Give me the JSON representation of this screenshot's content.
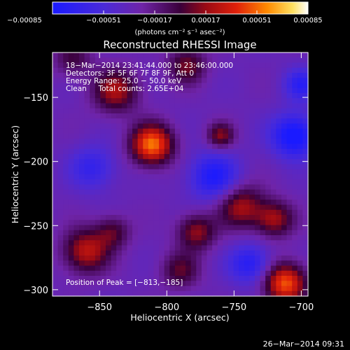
{
  "chart_data": {
    "type": "heatmap",
    "title": "Reconstructed RHESSI Image",
    "xlabel": "Heliocentric X (arcsec)",
    "ylabel": "Heliocentric Y (arcsec)",
    "xlim": [
      -885,
      -695
    ],
    "ylim": [
      -305,
      -115
    ],
    "x_ticks": [
      {
        "value": -850,
        "label": "−850"
      },
      {
        "value": -800,
        "label": "−800"
      },
      {
        "value": -750,
        "label": "−750"
      },
      {
        "value": -700,
        "label": "−700"
      }
    ],
    "y_ticks": [
      {
        "value": -150,
        "label": "−150"
      },
      {
        "value": -200,
        "label": "−200"
      },
      {
        "value": -250,
        "label": "−250"
      },
      {
        "value": -300,
        "label": "−300"
      }
    ],
    "colorbar": {
      "colormap": "blue-purple-red-yellow-white",
      "range": [
        -0.00085,
        0.00085
      ],
      "tick_values": [
        -0.00085,
        -0.00051,
        -0.00017,
        0.00017,
        0.00051,
        0.00085
      ],
      "tick_labels": [
        "−0.00085",
        "−0.00051",
        "−0.00017",
        "0.00017",
        "0.00051",
        "0.00085"
      ],
      "unit_label": "(photons cm⁻² s⁻¹ asec⁻²)"
    },
    "info_lines": [
      "18−Mar−2014 23:41:44.000 to 23:46:00.000",
      "Detectors: 3F 5F 6F 7F 8F 9F, Att 0",
      "Energy Range: 25.0 − 50.0 keV",
      "Clean     Total counts: 2.65E+04"
    ],
    "peak_text": "Position of Peak = [−813,−185]",
    "sources": [
      {
        "x": -811,
        "y": -187,
        "sigma": 11,
        "amp": 0.00085
      },
      {
        "x": -838,
        "y": -145,
        "sigma": 12,
        "amp": 0.00052
      },
      {
        "x": -860,
        "y": -270,
        "sigma": 12,
        "amp": 0.00058
      },
      {
        "x": -840,
        "y": -255,
        "sigma": 9,
        "amp": 0.00035
      },
      {
        "x": -790,
        "y": -285,
        "sigma": 10,
        "amp": 0.00036
      },
      {
        "x": -778,
        "y": -255,
        "sigma": 10,
        "amp": 0.00048
      },
      {
        "x": -760,
        "y": -180,
        "sigma": 7,
        "amp": 0.00045
      },
      {
        "x": -745,
        "y": -235,
        "sigma": 12,
        "amp": 0.00052
      },
      {
        "x": -720,
        "y": -245,
        "sigma": 10,
        "amp": 0.0005
      },
      {
        "x": -712,
        "y": -295,
        "sigma": 11,
        "amp": 0.0008
      },
      {
        "x": -785,
        "y": -125,
        "sigma": 10,
        "amp": 0.00042
      },
      {
        "x": -870,
        "y": -120,
        "sigma": 10,
        "amp": 0.0003
      }
    ],
    "negatives": [
      {
        "x": -765,
        "y": -212,
        "sigma": 13,
        "amp": 0.0005
      },
      {
        "x": -705,
        "y": -180,
        "sigma": 12,
        "amp": 0.00062
      },
      {
        "x": -855,
        "y": -205,
        "sigma": 12,
        "amp": 0.00035
      },
      {
        "x": -738,
        "y": -280,
        "sigma": 11,
        "amp": 0.00045
      },
      {
        "x": -700,
        "y": -140,
        "sigma": 9,
        "amp": 0.0004
      }
    ]
  },
  "footer": {
    "date": "26−Mar−2014 09:31"
  }
}
